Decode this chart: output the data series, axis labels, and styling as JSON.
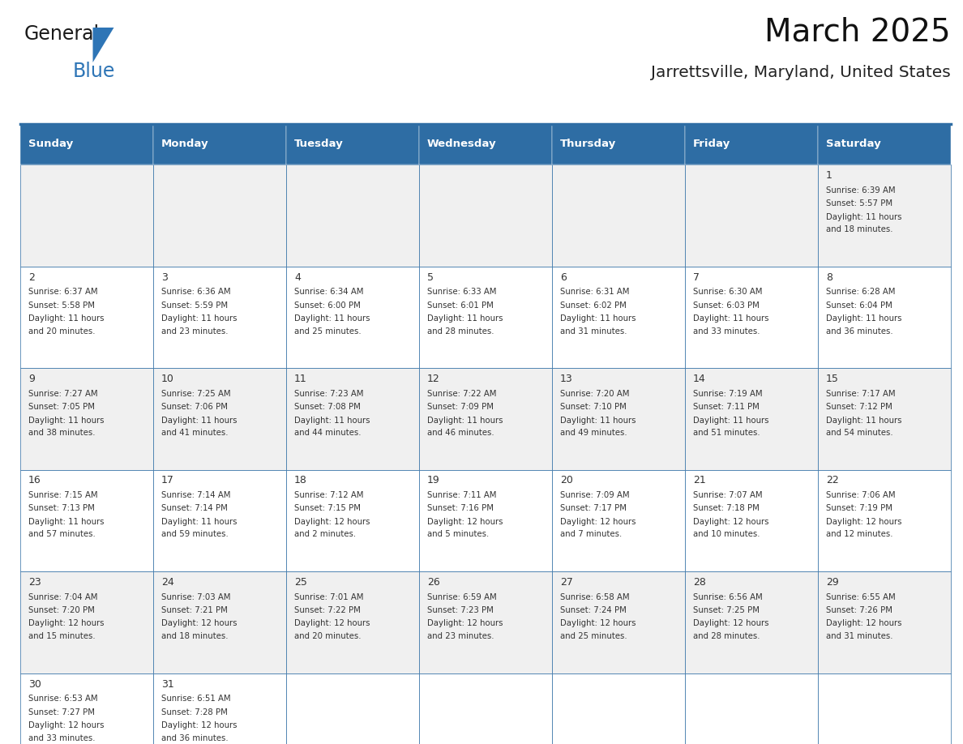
{
  "title": "March 2025",
  "subtitle": "Jarrettsville, Maryland, United States",
  "header_color": "#2E6DA4",
  "header_text_color": "#FFFFFF",
  "cell_bg_even": "#F0F0F0",
  "cell_bg_odd": "#FFFFFF",
  "border_color": "#2E6DA4",
  "text_color": "#333333",
  "days_of_week": [
    "Sunday",
    "Monday",
    "Tuesday",
    "Wednesday",
    "Thursday",
    "Friday",
    "Saturday"
  ],
  "calendar_data": [
    [
      null,
      null,
      null,
      null,
      null,
      null,
      {
        "day": 1,
        "sunrise": "6:39 AM",
        "sunset": "5:57 PM",
        "daylight_l1": "Daylight: 11 hours",
        "daylight_l2": "and 18 minutes."
      }
    ],
    [
      {
        "day": 2,
        "sunrise": "6:37 AM",
        "sunset": "5:58 PM",
        "daylight_l1": "Daylight: 11 hours",
        "daylight_l2": "and 20 minutes."
      },
      {
        "day": 3,
        "sunrise": "6:36 AM",
        "sunset": "5:59 PM",
        "daylight_l1": "Daylight: 11 hours",
        "daylight_l2": "and 23 minutes."
      },
      {
        "day": 4,
        "sunrise": "6:34 AM",
        "sunset": "6:00 PM",
        "daylight_l1": "Daylight: 11 hours",
        "daylight_l2": "and 25 minutes."
      },
      {
        "day": 5,
        "sunrise": "6:33 AM",
        "sunset": "6:01 PM",
        "daylight_l1": "Daylight: 11 hours",
        "daylight_l2": "and 28 minutes."
      },
      {
        "day": 6,
        "sunrise": "6:31 AM",
        "sunset": "6:02 PM",
        "daylight_l1": "Daylight: 11 hours",
        "daylight_l2": "and 31 minutes."
      },
      {
        "day": 7,
        "sunrise": "6:30 AM",
        "sunset": "6:03 PM",
        "daylight_l1": "Daylight: 11 hours",
        "daylight_l2": "and 33 minutes."
      },
      {
        "day": 8,
        "sunrise": "6:28 AM",
        "sunset": "6:04 PM",
        "daylight_l1": "Daylight: 11 hours",
        "daylight_l2": "and 36 minutes."
      }
    ],
    [
      {
        "day": 9,
        "sunrise": "7:27 AM",
        "sunset": "7:05 PM",
        "daylight_l1": "Daylight: 11 hours",
        "daylight_l2": "and 38 minutes."
      },
      {
        "day": 10,
        "sunrise": "7:25 AM",
        "sunset": "7:06 PM",
        "daylight_l1": "Daylight: 11 hours",
        "daylight_l2": "and 41 minutes."
      },
      {
        "day": 11,
        "sunrise": "7:23 AM",
        "sunset": "7:08 PM",
        "daylight_l1": "Daylight: 11 hours",
        "daylight_l2": "and 44 minutes."
      },
      {
        "day": 12,
        "sunrise": "7:22 AM",
        "sunset": "7:09 PM",
        "daylight_l1": "Daylight: 11 hours",
        "daylight_l2": "and 46 minutes."
      },
      {
        "day": 13,
        "sunrise": "7:20 AM",
        "sunset": "7:10 PM",
        "daylight_l1": "Daylight: 11 hours",
        "daylight_l2": "and 49 minutes."
      },
      {
        "day": 14,
        "sunrise": "7:19 AM",
        "sunset": "7:11 PM",
        "daylight_l1": "Daylight: 11 hours",
        "daylight_l2": "and 51 minutes."
      },
      {
        "day": 15,
        "sunrise": "7:17 AM",
        "sunset": "7:12 PM",
        "daylight_l1": "Daylight: 11 hours",
        "daylight_l2": "and 54 minutes."
      }
    ],
    [
      {
        "day": 16,
        "sunrise": "7:15 AM",
        "sunset": "7:13 PM",
        "daylight_l1": "Daylight: 11 hours",
        "daylight_l2": "and 57 minutes."
      },
      {
        "day": 17,
        "sunrise": "7:14 AM",
        "sunset": "7:14 PM",
        "daylight_l1": "Daylight: 11 hours",
        "daylight_l2": "and 59 minutes."
      },
      {
        "day": 18,
        "sunrise": "7:12 AM",
        "sunset": "7:15 PM",
        "daylight_l1": "Daylight: 12 hours",
        "daylight_l2": "and 2 minutes."
      },
      {
        "day": 19,
        "sunrise": "7:11 AM",
        "sunset": "7:16 PM",
        "daylight_l1": "Daylight: 12 hours",
        "daylight_l2": "and 5 minutes."
      },
      {
        "day": 20,
        "sunrise": "7:09 AM",
        "sunset": "7:17 PM",
        "daylight_l1": "Daylight: 12 hours",
        "daylight_l2": "and 7 minutes."
      },
      {
        "day": 21,
        "sunrise": "7:07 AM",
        "sunset": "7:18 PM",
        "daylight_l1": "Daylight: 12 hours",
        "daylight_l2": "and 10 minutes."
      },
      {
        "day": 22,
        "sunrise": "7:06 AM",
        "sunset": "7:19 PM",
        "daylight_l1": "Daylight: 12 hours",
        "daylight_l2": "and 12 minutes."
      }
    ],
    [
      {
        "day": 23,
        "sunrise": "7:04 AM",
        "sunset": "7:20 PM",
        "daylight_l1": "Daylight: 12 hours",
        "daylight_l2": "and 15 minutes."
      },
      {
        "day": 24,
        "sunrise": "7:03 AM",
        "sunset": "7:21 PM",
        "daylight_l1": "Daylight: 12 hours",
        "daylight_l2": "and 18 minutes."
      },
      {
        "day": 25,
        "sunrise": "7:01 AM",
        "sunset": "7:22 PM",
        "daylight_l1": "Daylight: 12 hours",
        "daylight_l2": "and 20 minutes."
      },
      {
        "day": 26,
        "sunrise": "6:59 AM",
        "sunset": "7:23 PM",
        "daylight_l1": "Daylight: 12 hours",
        "daylight_l2": "and 23 minutes."
      },
      {
        "day": 27,
        "sunrise": "6:58 AM",
        "sunset": "7:24 PM",
        "daylight_l1": "Daylight: 12 hours",
        "daylight_l2": "and 25 minutes."
      },
      {
        "day": 28,
        "sunrise": "6:56 AM",
        "sunset": "7:25 PM",
        "daylight_l1": "Daylight: 12 hours",
        "daylight_l2": "and 28 minutes."
      },
      {
        "day": 29,
        "sunrise": "6:55 AM",
        "sunset": "7:26 PM",
        "daylight_l1": "Daylight: 12 hours",
        "daylight_l2": "and 31 minutes."
      }
    ],
    [
      {
        "day": 30,
        "sunrise": "6:53 AM",
        "sunset": "7:27 PM",
        "daylight_l1": "Daylight: 12 hours",
        "daylight_l2": "and 33 minutes."
      },
      {
        "day": 31,
        "sunrise": "6:51 AM",
        "sunset": "7:28 PM",
        "daylight_l1": "Daylight: 12 hours",
        "daylight_l2": "and 36 minutes."
      },
      null,
      null,
      null,
      null,
      null
    ]
  ],
  "logo_color_general": "#1a1a1a",
  "logo_color_blue": "#2E75B6",
  "logo_triangle_color": "#2E75B6"
}
